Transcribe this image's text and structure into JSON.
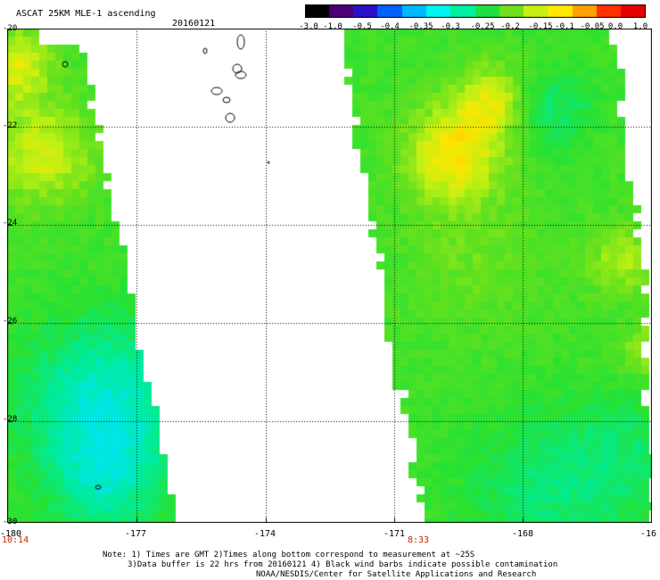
{
  "header": {
    "title": "ASCAT 25KM MLE-1 ascending",
    "date": "20160121"
  },
  "colorbar": {
    "labels": [
      "-3.0",
      "-1.0",
      "-0.5",
      "-0.4",
      "-0.35",
      "-0.3",
      "-0.25",
      "-0.2",
      "-0.15",
      "-0.1",
      "-0.05",
      "0.0",
      "1.0"
    ],
    "colors": [
      "#000000",
      "#4a0078",
      "#2a10c8",
      "#0060ff",
      "#00b8ff",
      "#00f4f0",
      "#00f0a0",
      "#20e040",
      "#70e020",
      "#c8f010",
      "#ffe800",
      "#ffa000",
      "#ff3000",
      "#e80000"
    ]
  },
  "axes": {
    "x_ticks": [
      "-180",
      "-177",
      "-174",
      "-171",
      "-168",
      "-16"
    ],
    "y_ticks": [
      "-20",
      "-22",
      "-24",
      "-26",
      "-28",
      "-30"
    ],
    "time_labels": [
      "10:14",
      "8:33"
    ]
  },
  "footer": {
    "line1": "Note: 1) Times are GMT 2)Times along bottom correspond to measurement at ~25S",
    "line2": "3)Data buffer is 22 hrs from 20160121 4) Black wind barbs indicate possible contamination",
    "line3": "NOAA/NESDIS/Center for Satellite Applications and Research"
  }
}
